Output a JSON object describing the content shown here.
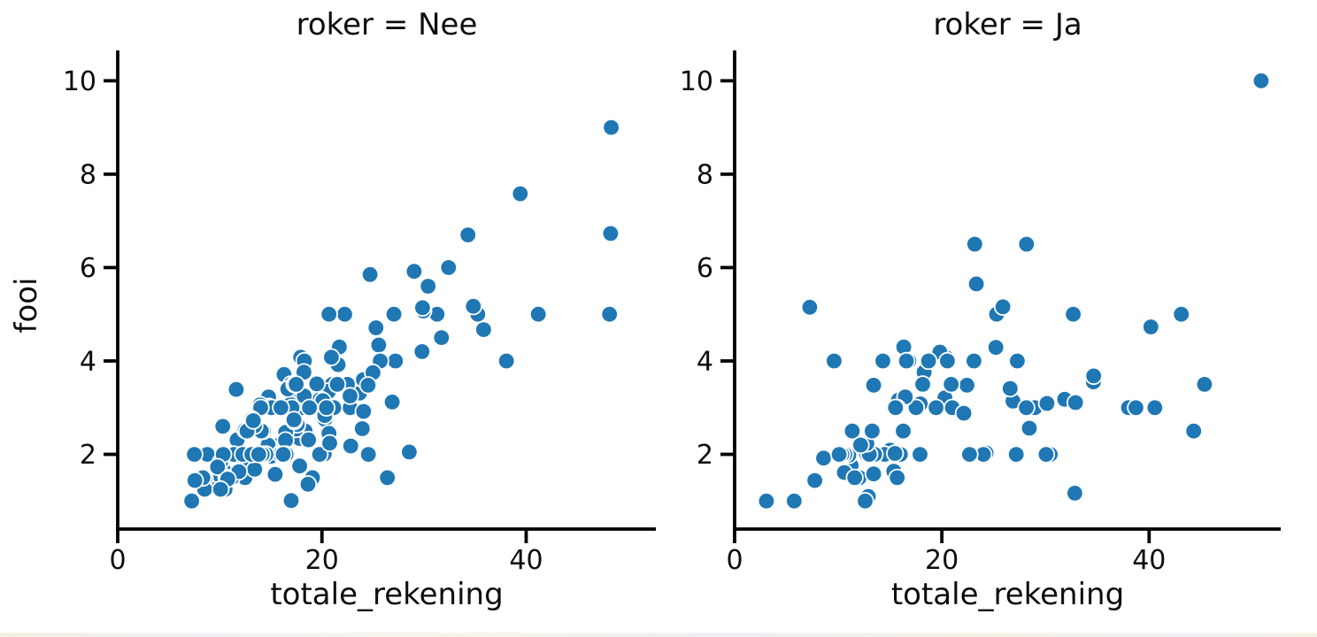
{
  "figure": {
    "background": "#ffffff",
    "point_color": "#1f77b4",
    "point_edge_color": "#ffffff",
    "axis_color": "#000000",
    "text_color": "#0d0d0d"
  },
  "chart_data": [
    {
      "type": "scatter",
      "title": "roker = Nee",
      "xlabel": "totale_rekening",
      "ylabel": "fooi",
      "xlim": [
        0,
        52.7
      ],
      "ylim": [
        0.4,
        10.65
      ],
      "xticks": [
        0,
        20,
        40
      ],
      "yticks": [
        2,
        4,
        6,
        8,
        10
      ],
      "grid": false,
      "legend": false,
      "marker": "circle",
      "points": [
        [
          16.99,
          1.01
        ],
        [
          10.34,
          1.66
        ],
        [
          21.01,
          3.5
        ],
        [
          23.68,
          3.31
        ],
        [
          24.59,
          3.61
        ],
        [
          25.29,
          4.71
        ],
        [
          8.77,
          2.0
        ],
        [
          26.88,
          3.12
        ],
        [
          15.04,
          1.96
        ],
        [
          14.78,
          3.23
        ],
        [
          10.27,
          1.71
        ],
        [
          35.26,
          5.0
        ],
        [
          15.42,
          1.57
        ],
        [
          18.43,
          3.0
        ],
        [
          14.83,
          3.02
        ],
        [
          21.58,
          3.92
        ],
        [
          10.33,
          1.67
        ],
        [
          16.29,
          3.71
        ],
        [
          16.97,
          3.5
        ],
        [
          20.65,
          3.35
        ],
        [
          17.92,
          4.08
        ],
        [
          20.29,
          2.75
        ],
        [
          15.77,
          2.23
        ],
        [
          39.42,
          7.58
        ],
        [
          19.82,
          3.18
        ],
        [
          17.81,
          2.34
        ],
        [
          13.37,
          2.0
        ],
        [
          12.69,
          2.0
        ],
        [
          21.7,
          4.3
        ],
        [
          19.65,
          3.0
        ],
        [
          9.55,
          1.45
        ],
        [
          18.35,
          2.5
        ],
        [
          15.06,
          3.0
        ],
        [
          20.69,
          2.45
        ],
        [
          17.78,
          3.27
        ],
        [
          24.06,
          3.6
        ],
        [
          16.31,
          2.0
        ],
        [
          16.93,
          3.07
        ],
        [
          18.69,
          2.31
        ],
        [
          31.27,
          5.0
        ],
        [
          16.04,
          2.24
        ],
        [
          17.46,
          2.54
        ],
        [
          13.94,
          3.06
        ],
        [
          9.68,
          1.32
        ],
        [
          30.4,
          5.6
        ],
        [
          18.29,
          3.0
        ],
        [
          22.23,
          5.0
        ],
        [
          32.4,
          6.0
        ],
        [
          28.55,
          2.05
        ],
        [
          18.04,
          3.0
        ],
        [
          12.54,
          2.5
        ],
        [
          10.29,
          2.6
        ],
        [
          34.81,
          5.2
        ],
        [
          9.94,
          1.56
        ],
        [
          25.56,
          4.34
        ],
        [
          19.49,
          3.51
        ],
        [
          26.41,
          1.5
        ],
        [
          48.27,
          6.73
        ],
        [
          17.59,
          2.64
        ],
        [
          20.08,
          3.15
        ],
        [
          16.45,
          2.47
        ],
        [
          20.23,
          2.01
        ],
        [
          12.02,
          1.97
        ],
        [
          17.07,
          3.0
        ],
        [
          14.73,
          2.2
        ],
        [
          10.51,
          1.25
        ],
        [
          27.2,
          4.0
        ],
        [
          22.76,
          3.0
        ],
        [
          17.29,
          2.71
        ],
        [
          16.66,
          3.4
        ],
        [
          10.07,
          1.83
        ],
        [
          15.98,
          2.03
        ],
        [
          34.83,
          5.17
        ],
        [
          13.03,
          2.0
        ],
        [
          18.28,
          4.0
        ],
        [
          24.71,
          5.85
        ],
        [
          21.16,
          3.0
        ],
        [
          22.49,
          3.5
        ],
        [
          22.75,
          3.25
        ],
        [
          12.46,
          1.5
        ],
        [
          20.92,
          4.08
        ],
        [
          18.24,
          3.76
        ],
        [
          14.0,
          3.0
        ],
        [
          7.25,
          1.0
        ],
        [
          38.07,
          4.0
        ],
        [
          23.95,
          2.55
        ],
        [
          25.71,
          4.0
        ],
        [
          17.31,
          3.5
        ],
        [
          29.93,
          5.07
        ],
        [
          10.65,
          1.5
        ],
        [
          12.43,
          1.8
        ],
        [
          24.08,
          2.92
        ],
        [
          11.69,
          2.31
        ],
        [
          13.42,
          1.68
        ],
        [
          14.26,
          2.5
        ],
        [
          15.95,
          2.0
        ],
        [
          12.48,
          2.52
        ],
        [
          29.8,
          4.2
        ],
        [
          8.52,
          1.48
        ],
        [
          14.52,
          2.0
        ],
        [
          11.38,
          2.0
        ],
        [
          22.82,
          2.18
        ],
        [
          19.08,
          1.5
        ],
        [
          20.27,
          2.83
        ],
        [
          11.17,
          1.5
        ],
        [
          12.26,
          2.0
        ],
        [
          18.26,
          3.25
        ],
        [
          8.51,
          1.25
        ],
        [
          10.33,
          2.0
        ],
        [
          14.15,
          2.0
        ],
        [
          13.16,
          2.75
        ],
        [
          17.47,
          3.5
        ],
        [
          34.3,
          6.7
        ],
        [
          41.19,
          5.0
        ],
        [
          27.05,
          5.0
        ],
        [
          16.43,
          2.3
        ],
        [
          8.35,
          1.5
        ],
        [
          18.64,
          1.36
        ],
        [
          11.87,
          1.63
        ],
        [
          9.78,
          1.73
        ],
        [
          7.51,
          2.0
        ],
        [
          14.07,
          2.5
        ],
        [
          13.13,
          2.0
        ],
        [
          17.26,
          2.74
        ],
        [
          24.55,
          2.0
        ],
        [
          19.77,
          2.0
        ],
        [
          29.85,
          5.14
        ],
        [
          48.17,
          5.0
        ],
        [
          25.0,
          3.75
        ],
        [
          13.39,
          2.61
        ],
        [
          16.49,
          2.0
        ],
        [
          21.5,
          3.5
        ],
        [
          12.66,
          2.5
        ],
        [
          16.21,
          2.0
        ],
        [
          13.81,
          2.0
        ],
        [
          24.52,
          3.48
        ],
        [
          20.76,
          2.24
        ],
        [
          31.71,
          4.5
        ],
        [
          20.69,
          5.0
        ],
        [
          7.56,
          1.44
        ],
        [
          48.33,
          9.0
        ],
        [
          15.98,
          3.0
        ],
        [
          20.45,
          3.0
        ],
        [
          13.28,
          2.72
        ],
        [
          11.61,
          3.39
        ],
        [
          10.77,
          1.47
        ],
        [
          10.07,
          1.25
        ],
        [
          35.83,
          4.67
        ],
        [
          29.03,
          5.92
        ],
        [
          17.82,
          1.75
        ],
        [
          18.78,
          3.0
        ]
      ]
    },
    {
      "type": "scatter",
      "title": "roker = Ja",
      "xlabel": "totale_rekening",
      "ylabel": "fooi",
      "xlim": [
        0,
        52.7
      ],
      "ylim": [
        0.4,
        10.65
      ],
      "xticks": [
        0,
        20,
        40
      ],
      "yticks": [
        2,
        4,
        6,
        8,
        10
      ],
      "grid": false,
      "legend": false,
      "marker": "circle",
      "points": [
        [
          38.01,
          3.0
        ],
        [
          11.24,
          1.76
        ],
        [
          20.29,
          3.21
        ],
        [
          13.81,
          2.0
        ],
        [
          11.02,
          1.98
        ],
        [
          18.29,
          3.76
        ],
        [
          3.07,
          1.0
        ],
        [
          15.01,
          2.09
        ],
        [
          26.86,
          3.14
        ],
        [
          25.28,
          5.0
        ],
        [
          17.92,
          3.08
        ],
        [
          19.44,
          3.0
        ],
        [
          32.68,
          5.0
        ],
        [
          28.97,
          3.0
        ],
        [
          5.75,
          1.0
        ],
        [
          16.32,
          4.3
        ],
        [
          40.17,
          4.73
        ],
        [
          27.28,
          4.0
        ],
        [
          12.03,
          1.5
        ],
        [
          21.01,
          3.0
        ],
        [
          11.35,
          2.5
        ],
        [
          15.38,
          3.0
        ],
        [
          44.3,
          2.5
        ],
        [
          22.42,
          3.48
        ],
        [
          15.36,
          1.64
        ],
        [
          20.49,
          4.06
        ],
        [
          25.21,
          4.29
        ],
        [
          14.31,
          4.0
        ],
        [
          16.0,
          2.0
        ],
        [
          17.51,
          3.0
        ],
        [
          10.59,
          1.61
        ],
        [
          10.63,
          2.0
        ],
        [
          50.81,
          10.0
        ],
        [
          15.81,
          3.16
        ],
        [
          7.25,
          5.15
        ],
        [
          31.85,
          3.18
        ],
        [
          16.82,
          4.0
        ],
        [
          32.9,
          3.11
        ],
        [
          17.89,
          2.0
        ],
        [
          14.48,
          2.0
        ],
        [
          9.6,
          4.0
        ],
        [
          34.63,
          3.55
        ],
        [
          34.65,
          3.68
        ],
        [
          23.33,
          5.65
        ],
        [
          45.35,
          3.5
        ],
        [
          23.17,
          6.5
        ],
        [
          40.55,
          3.0
        ],
        [
          20.9,
          3.5
        ],
        [
          30.46,
          2.0
        ],
        [
          18.15,
          3.5
        ],
        [
          23.1,
          4.0
        ],
        [
          15.69,
          1.5
        ],
        [
          19.81,
          4.19
        ],
        [
          28.44,
          2.56
        ],
        [
          15.48,
          2.02
        ],
        [
          16.58,
          4.0
        ],
        [
          10.34,
          2.0
        ],
        [
          43.11,
          5.0
        ],
        [
          13.0,
          2.0
        ],
        [
          13.51,
          2.0
        ],
        [
          18.71,
          4.0
        ],
        [
          12.74,
          2.01
        ],
        [
          13.0,
          2.0
        ],
        [
          16.4,
          2.5
        ],
        [
          20.53,
          4.0
        ],
        [
          16.47,
          3.23
        ],
        [
          26.59,
          3.41
        ],
        [
          38.73,
          3.0
        ],
        [
          24.27,
          2.03
        ],
        [
          12.76,
          2.23
        ],
        [
          30.06,
          2.0
        ],
        [
          25.89,
          5.16
        ],
        [
          13.27,
          2.5
        ],
        [
          28.17,
          6.5
        ],
        [
          12.9,
          1.1
        ],
        [
          28.15,
          3.0
        ],
        [
          11.59,
          1.5
        ],
        [
          7.74,
          1.44
        ],
        [
          30.14,
          3.09
        ],
        [
          12.16,
          2.2
        ],
        [
          13.42,
          3.48
        ],
        [
          8.58,
          1.92
        ],
        [
          13.42,
          1.58
        ],
        [
          16.27,
          2.5
        ],
        [
          10.09,
          2.0
        ],
        [
          22.12,
          2.88
        ],
        [
          24.01,
          2.0
        ],
        [
          15.69,
          3.0
        ],
        [
          15.53,
          3.0
        ],
        [
          12.6,
          1.0
        ],
        [
          32.83,
          1.17
        ],
        [
          27.18,
          2.0
        ],
        [
          22.67,
          2.0
        ]
      ]
    }
  ]
}
